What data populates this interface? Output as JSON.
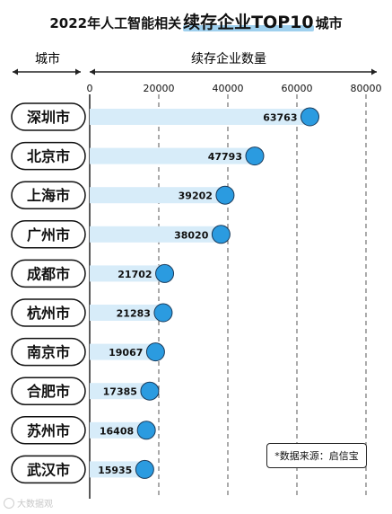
{
  "title": {
    "part1": "2022年人工智能相关",
    "part2": "续存企业TOP10",
    "part3": "城市"
  },
  "header": {
    "category_label": "城市",
    "value_label": "续存企业数量"
  },
  "source": "*数据来源：启信宝",
  "watermark": "大数据观",
  "colors": {
    "bar": "#d7ecf9",
    "dot": "#2b9be0",
    "dot_stroke": "#1a3a5a",
    "pill_border": "#111111",
    "grid": "#555555"
  },
  "chart_data": {
    "type": "bar",
    "orientation": "horizontal",
    "categories": [
      "深圳市",
      "北京市",
      "上海市",
      "广州市",
      "成都市",
      "杭州市",
      "南京市",
      "合肥市",
      "苏州市",
      "武汉市"
    ],
    "values": [
      63763,
      47793,
      39202,
      38020,
      21702,
      21283,
      19067,
      17385,
      16408,
      15935
    ],
    "xlim": [
      0,
      80000
    ],
    "xticks": [
      0,
      20000,
      40000,
      60000,
      80000
    ],
    "xtick_labels": [
      "0",
      "20000",
      "40000",
      "60000",
      "80000"
    ],
    "grid": true
  }
}
